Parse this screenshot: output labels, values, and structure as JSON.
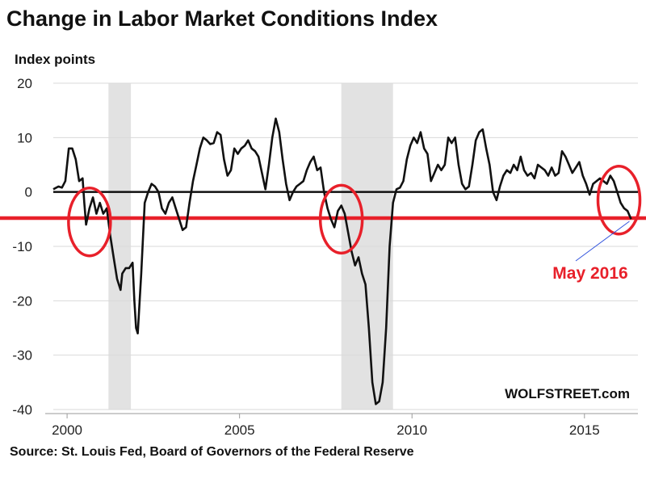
{
  "chart_data": {
    "type": "line",
    "title": "Change in Labor Market Conditions Index",
    "ylabel": "Index points",
    "source": "Source: St. Louis Fed, Board of Governors of the Federal Reserve",
    "watermark": "WOLFSTREET.com",
    "annotation": {
      "text": "May 2016",
      "x": 2016.35,
      "y": -5.1
    },
    "xlim": [
      1999.6,
      2016.55
    ],
    "ylim": [
      -40,
      20
    ],
    "x_ticks": [
      2000,
      2005,
      2010,
      2015
    ],
    "y_ticks": [
      -40,
      -30,
      -20,
      -10,
      0,
      10,
      20
    ],
    "grid": true,
    "zero_line": true,
    "reference_line": {
      "y": -4.8,
      "color": "#e8202a"
    },
    "recessions": [
      [
        2001.2,
        2001.85
      ],
      [
        2007.95,
        2009.45
      ]
    ],
    "highlight_circles": [
      {
        "x": 2000.65,
        "y": -5.5,
        "color": "#e8202a"
      },
      {
        "x": 2007.95,
        "y": -5.0,
        "color": "#e8202a"
      },
      {
        "x": 2016.0,
        "y": -1.5,
        "color": "#e8202a"
      }
    ],
    "series": [
      {
        "color": "#111111",
        "points": [
          [
            1999.6,
            0.5
          ],
          [
            1999.75,
            1
          ],
          [
            1999.85,
            0.8
          ],
          [
            1999.95,
            2
          ],
          [
            2000.05,
            8
          ],
          [
            2000.15,
            8
          ],
          [
            2000.25,
            6
          ],
          [
            2000.35,
            2
          ],
          [
            2000.45,
            2.5
          ],
          [
            2000.5,
            -2
          ],
          [
            2000.55,
            -6
          ],
          [
            2000.65,
            -3
          ],
          [
            2000.75,
            -1
          ],
          [
            2000.85,
            -4
          ],
          [
            2000.95,
            -2
          ],
          [
            2001.05,
            -4
          ],
          [
            2001.15,
            -3
          ],
          [
            2001.25,
            -8
          ],
          [
            2001.35,
            -12
          ],
          [
            2001.45,
            -16
          ],
          [
            2001.55,
            -18
          ],
          [
            2001.6,
            -15
          ],
          [
            2001.7,
            -14
          ],
          [
            2001.8,
            -14
          ],
          [
            2001.9,
            -13
          ],
          [
            2001.95,
            -20
          ],
          [
            2002.0,
            -25
          ],
          [
            2002.05,
            -26
          ],
          [
            2002.15,
            -15
          ],
          [
            2002.25,
            -2
          ],
          [
            2002.35,
            0
          ],
          [
            2002.45,
            1.5
          ],
          [
            2002.55,
            1
          ],
          [
            2002.65,
            0
          ],
          [
            2002.75,
            -3
          ],
          [
            2002.85,
            -4
          ],
          [
            2002.95,
            -2
          ],
          [
            2003.05,
            -1
          ],
          [
            2003.15,
            -3
          ],
          [
            2003.25,
            -5
          ],
          [
            2003.35,
            -7
          ],
          [
            2003.45,
            -6.5
          ],
          [
            2003.55,
            -2
          ],
          [
            2003.65,
            2
          ],
          [
            2003.75,
            5
          ],
          [
            2003.85,
            8
          ],
          [
            2003.95,
            10
          ],
          [
            2004.05,
            9.5
          ],
          [
            2004.15,
            8.8
          ],
          [
            2004.25,
            9
          ],
          [
            2004.35,
            11
          ],
          [
            2004.45,
            10.5
          ],
          [
            2004.55,
            6
          ],
          [
            2004.65,
            3
          ],
          [
            2004.75,
            4
          ],
          [
            2004.85,
            8
          ],
          [
            2004.95,
            7
          ],
          [
            2005.05,
            8
          ],
          [
            2005.15,
            8.5
          ],
          [
            2005.25,
            9.5
          ],
          [
            2005.35,
            8
          ],
          [
            2005.45,
            7.5
          ],
          [
            2005.55,
            6.5
          ],
          [
            2005.65,
            3.5
          ],
          [
            2005.75,
            0.5
          ],
          [
            2005.85,
            5
          ],
          [
            2005.95,
            10
          ],
          [
            2006.05,
            13.5
          ],
          [
            2006.15,
            11
          ],
          [
            2006.25,
            6
          ],
          [
            2006.35,
            1.5
          ],
          [
            2006.45,
            -1.5
          ],
          [
            2006.55,
            0
          ],
          [
            2006.65,
            1
          ],
          [
            2006.75,
            1.5
          ],
          [
            2006.85,
            2
          ],
          [
            2006.95,
            4
          ],
          [
            2007.05,
            5.5
          ],
          [
            2007.15,
            6.5
          ],
          [
            2007.25,
            4
          ],
          [
            2007.35,
            4.5
          ],
          [
            2007.45,
            0
          ],
          [
            2007.55,
            -3
          ],
          [
            2007.65,
            -5
          ],
          [
            2007.75,
            -6.5
          ],
          [
            2007.85,
            -3.5
          ],
          [
            2007.95,
            -2.5
          ],
          [
            2008.05,
            -4
          ],
          [
            2008.15,
            -7.5
          ],
          [
            2008.25,
            -11
          ],
          [
            2008.35,
            -13.5
          ],
          [
            2008.45,
            -12
          ],
          [
            2008.55,
            -15
          ],
          [
            2008.65,
            -17
          ],
          [
            2008.75,
            -25
          ],
          [
            2008.85,
            -35
          ],
          [
            2008.95,
            -39
          ],
          [
            2009.05,
            -38.5
          ],
          [
            2009.15,
            -35
          ],
          [
            2009.25,
            -25
          ],
          [
            2009.35,
            -10
          ],
          [
            2009.45,
            -2
          ],
          [
            2009.55,
            0.5
          ],
          [
            2009.65,
            0.8
          ],
          [
            2009.75,
            2
          ],
          [
            2009.85,
            6
          ],
          [
            2009.95,
            8.5
          ],
          [
            2010.05,
            10
          ],
          [
            2010.15,
            9
          ],
          [
            2010.25,
            11
          ],
          [
            2010.35,
            8
          ],
          [
            2010.45,
            7
          ],
          [
            2010.55,
            2
          ],
          [
            2010.65,
            3.5
          ],
          [
            2010.75,
            5
          ],
          [
            2010.85,
            4
          ],
          [
            2010.95,
            5
          ],
          [
            2011.05,
            10
          ],
          [
            2011.15,
            9
          ],
          [
            2011.25,
            10
          ],
          [
            2011.35,
            5
          ],
          [
            2011.45,
            1.5
          ],
          [
            2011.55,
            0.5
          ],
          [
            2011.65,
            1
          ],
          [
            2011.75,
            5
          ],
          [
            2011.85,
            9.5
          ],
          [
            2011.95,
            11
          ],
          [
            2012.05,
            11.5
          ],
          [
            2012.15,
            8
          ],
          [
            2012.25,
            5
          ],
          [
            2012.35,
            0
          ],
          [
            2012.45,
            -1.5
          ],
          [
            2012.55,
            1
          ],
          [
            2012.65,
            3
          ],
          [
            2012.75,
            4
          ],
          [
            2012.85,
            3.5
          ],
          [
            2012.95,
            5
          ],
          [
            2013.05,
            4
          ],
          [
            2013.15,
            6.5
          ],
          [
            2013.25,
            4
          ],
          [
            2013.35,
            3
          ],
          [
            2013.45,
            3.5
          ],
          [
            2013.55,
            2.5
          ],
          [
            2013.65,
            5
          ],
          [
            2013.75,
            4.5
          ],
          [
            2013.85,
            4
          ],
          [
            2013.95,
            3
          ],
          [
            2014.05,
            4.5
          ],
          [
            2014.15,
            3
          ],
          [
            2014.25,
            3.5
          ],
          [
            2014.35,
            7.5
          ],
          [
            2014.45,
            6.5
          ],
          [
            2014.55,
            5
          ],
          [
            2014.65,
            3.5
          ],
          [
            2014.75,
            4.5
          ],
          [
            2014.85,
            5.5
          ],
          [
            2014.95,
            3
          ],
          [
            2015.05,
            1.5
          ],
          [
            2015.15,
            -0.5
          ],
          [
            2015.25,
            1.5
          ],
          [
            2015.35,
            2
          ],
          [
            2015.45,
            2.5
          ],
          [
            2015.55,
            2
          ],
          [
            2015.65,
            1.5
          ],
          [
            2015.75,
            3
          ],
          [
            2015.85,
            2
          ],
          [
            2015.95,
            0
          ],
          [
            2016.05,
            -2
          ],
          [
            2016.15,
            -3
          ],
          [
            2016.25,
            -3.5
          ],
          [
            2016.35,
            -5
          ]
        ]
      }
    ]
  }
}
